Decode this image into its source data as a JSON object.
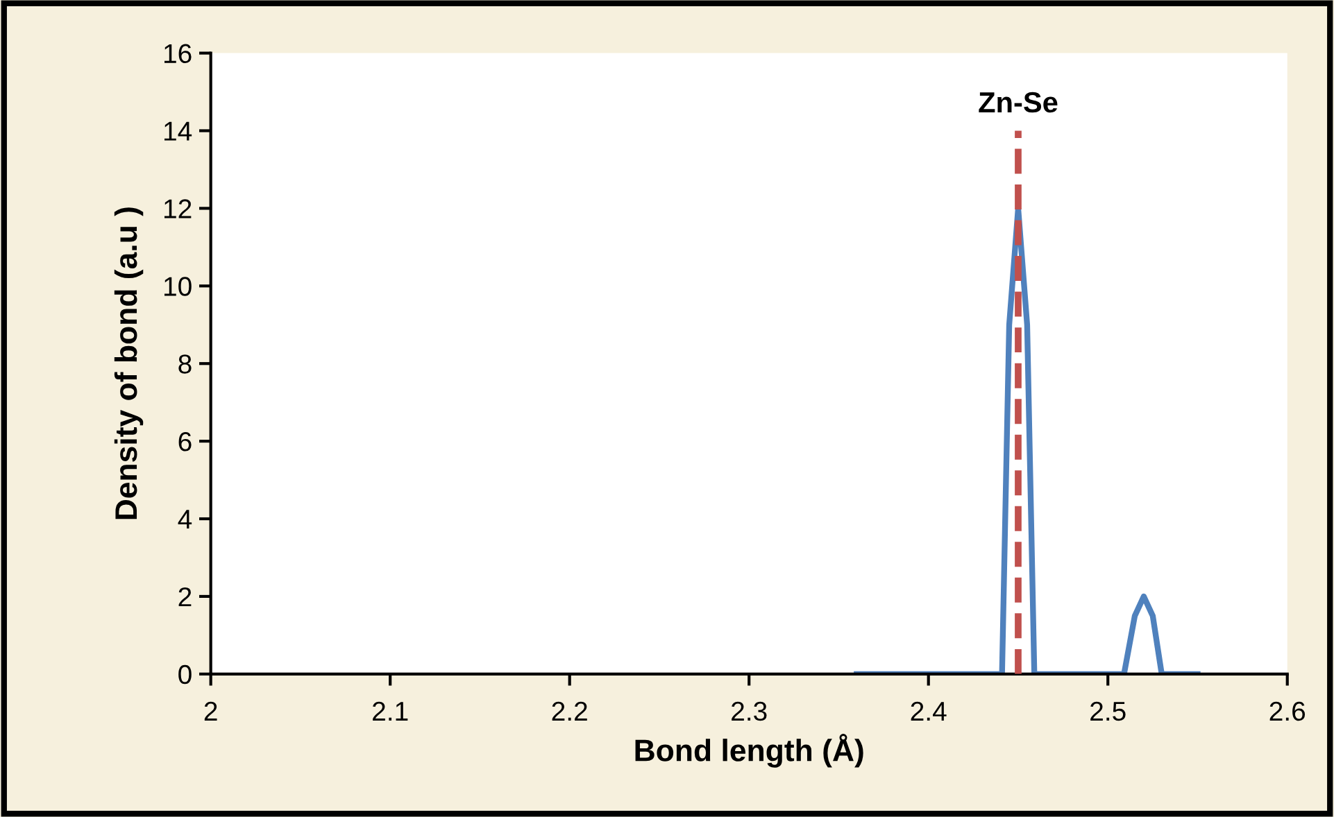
{
  "chart_data": {
    "type": "line",
    "xlabel": "Bond length (Å)",
    "ylabel": "Density of bond (a.u )",
    "series": [
      {
        "color": "#4f81bd",
        "x": [
          2.36,
          2.441,
          2.445,
          2.45,
          2.455,
          2.459,
          2.509,
          2.515,
          2.52,
          2.525,
          2.53,
          2.55
        ],
        "values": [
          0,
          0,
          9,
          12,
          9,
          0,
          0,
          1.5,
          2,
          1.5,
          0,
          0
        ]
      }
    ],
    "xlim": [
      2,
      2.6
    ],
    "xticks": [
      2,
      2.1,
      2.2,
      2.3,
      2.4,
      2.5,
      2.6
    ],
    "ylim": [
      0,
      16
    ],
    "yticks": [
      0,
      2,
      4,
      6,
      8,
      10,
      12,
      14,
      16
    ],
    "ref_lines": [
      {
        "axis": "x",
        "value": 2.45,
        "label": "Zn-Se",
        "color": "#c0504d",
        "line_style": "dashed"
      }
    ],
    "grid": false,
    "legend": false
  }
}
